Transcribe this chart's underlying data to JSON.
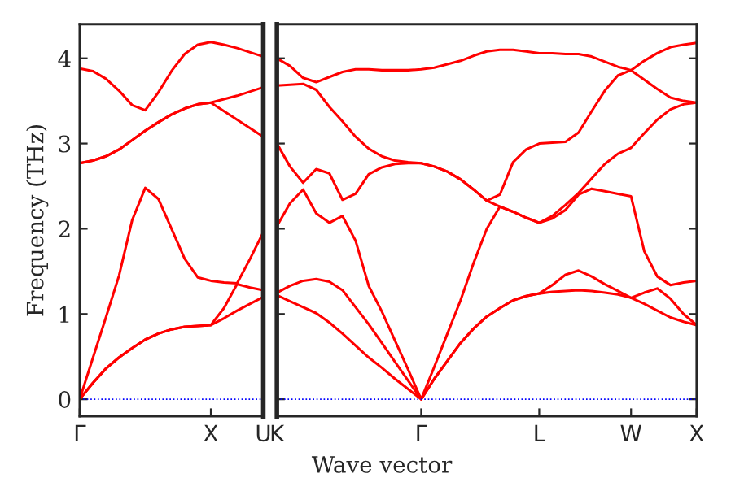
{
  "chart_data": [
    {
      "type": "line",
      "ylabel": "Frequency (THz)",
      "ylim": [
        -0.2,
        4.4
      ],
      "yticks": [
        0,
        1,
        2,
        3,
        4
      ],
      "categories": [
        "Γ",
        null,
        null,
        null,
        null,
        null,
        null,
        null,
        null,
        null,
        "X",
        null,
        null,
        null,
        "U"
      ],
      "grid": false,
      "legend": false,
      "line_style": "solid",
      "marker": "none",
      "ref_lines": [
        {
          "axis": "y",
          "value": 0,
          "label": null,
          "color": "#0000ff",
          "line_style": "dotted"
        }
      ],
      "series": [
        {
          "color": "#ff0000",
          "values": [
            0,
            0.19,
            0.36,
            0.49,
            0.6,
            0.7,
            0.77,
            0.82,
            0.85,
            0.86,
            0.87,
            0.95,
            1.04,
            1.12,
            1.2
          ]
        },
        {
          "color": "#ff0000",
          "values": [
            0,
            0.19,
            0.36,
            0.49,
            0.6,
            0.7,
            0.77,
            0.82,
            0.85,
            0.86,
            0.87,
            1.07,
            1.35,
            1.31,
            1.28
          ]
        },
        {
          "color": "#ff0000",
          "values": [
            0,
            0.48,
            0.96,
            1.45,
            2.1,
            2.48,
            2.35,
            2.0,
            1.65,
            1.43,
            1.39,
            1.37,
            1.36,
            1.65,
            1.96
          ]
        },
        {
          "color": "#ff0000",
          "values": [
            2.77,
            2.8,
            2.85,
            2.93,
            3.04,
            3.15,
            3.25,
            3.34,
            3.41,
            3.46,
            3.48,
            3.38,
            3.28,
            3.18,
            3.08
          ]
        },
        {
          "color": "#ff0000",
          "values": [
            2.77,
            2.8,
            2.85,
            2.93,
            3.04,
            3.15,
            3.25,
            3.34,
            3.41,
            3.46,
            3.48,
            3.52,
            3.56,
            3.61,
            3.66
          ]
        },
        {
          "color": "#ff0000",
          "values": [
            3.88,
            3.85,
            3.76,
            3.62,
            3.45,
            3.39,
            3.6,
            3.85,
            4.05,
            4.16,
            4.19,
            4.16,
            4.12,
            4.07,
            4.02
          ]
        }
      ]
    },
    {
      "type": "line",
      "xlabel": "Wave vector",
      "ylim": [
        -0.2,
        4.4
      ],
      "yticks": [
        0,
        1,
        2,
        3,
        4
      ],
      "tick_labels": "x",
      "categories": [
        "K",
        null,
        null,
        null,
        null,
        null,
        null,
        null,
        null,
        null,
        null,
        "Γ",
        null,
        null,
        null,
        null,
        null,
        null,
        null,
        null,
        "L",
        null,
        null,
        null,
        null,
        null,
        null,
        "W",
        null,
        null,
        null,
        null,
        "X"
      ],
      "grid": false,
      "legend": false,
      "line_style": "solid",
      "marker": "none",
      "ref_lines": [
        {
          "axis": "y",
          "value": 0,
          "label": null,
          "color": "#0000ff",
          "line_style": "dotted"
        }
      ],
      "series": [
        {
          "color": "#ff0000",
          "values": [
            1.22,
            1.15,
            1.08,
            1.01,
            0.9,
            0.77,
            0.63,
            0.49,
            0.37,
            0.24,
            0.12,
            0,
            0.24,
            0.45,
            0.66,
            0.83,
            0.97,
            1.07,
            1.16,
            1.21,
            1.24,
            1.26,
            1.27,
            1.28,
            1.27,
            1.25,
            1.23,
            1.19,
            1.12,
            1.04,
            0.96,
            0.91,
            0.87
          ]
        },
        {
          "color": "#ff0000",
          "values": [
            1.25,
            1.33,
            1.39,
            1.41,
            1.38,
            1.28,
            1.08,
            0.88,
            0.66,
            0.44,
            0.22,
            0,
            0.24,
            0.45,
            0.66,
            0.83,
            0.97,
            1.07,
            1.16,
            1.21,
            1.24,
            1.34,
            1.46,
            1.51,
            1.44,
            1.35,
            1.27,
            1.19,
            1.25,
            1.3,
            1.18,
            1.0,
            0.87
          ]
        },
        {
          "color": "#ff0000",
          "values": [
            2.03,
            2.3,
            2.46,
            2.18,
            2.07,
            2.15,
            1.86,
            1.33,
            1.03,
            0.69,
            0.35,
            0,
            0.38,
            0.77,
            1.16,
            1.6,
            2.0,
            2.26,
            2.2,
            2.13,
            2.07,
            2.12,
            2.22,
            2.4,
            2.47,
            2.44,
            2.41,
            2.38,
            1.74,
            1.44,
            1.34,
            1.37,
            1.39
          ]
        },
        {
          "color": "#ff0000",
          "values": [
            3.0,
            2.73,
            2.54,
            2.7,
            2.65,
            2.34,
            2.41,
            2.64,
            2.72,
            2.76,
            2.77,
            2.77,
            2.73,
            2.67,
            2.58,
            2.46,
            2.33,
            2.26,
            2.2,
            2.13,
            2.07,
            2.15,
            2.28,
            2.42,
            2.59,
            2.76,
            2.88,
            2.95,
            3.12,
            3.28,
            3.4,
            3.46,
            3.48
          ]
        },
        {
          "color": "#ff0000",
          "values": [
            3.68,
            3.69,
            3.7,
            3.63,
            3.43,
            3.26,
            3.08,
            2.94,
            2.85,
            2.8,
            2.78,
            2.77,
            2.73,
            2.67,
            2.58,
            2.46,
            2.33,
            2.4,
            2.78,
            2.93,
            3.0,
            3.01,
            3.02,
            3.13,
            3.38,
            3.62,
            3.8,
            3.86,
            3.75,
            3.64,
            3.54,
            3.5,
            3.48
          ]
        },
        {
          "color": "#ff0000",
          "values": [
            4.0,
            3.91,
            3.77,
            3.72,
            3.78,
            3.84,
            3.87,
            3.87,
            3.86,
            3.86,
            3.86,
            3.87,
            3.89,
            3.93,
            3.97,
            4.03,
            4.08,
            4.1,
            4.1,
            4.08,
            4.06,
            4.06,
            4.05,
            4.05,
            4.02,
            3.96,
            3.9,
            3.86,
            3.97,
            4.06,
            4.13,
            4.16,
            4.18
          ]
        }
      ]
    }
  ]
}
